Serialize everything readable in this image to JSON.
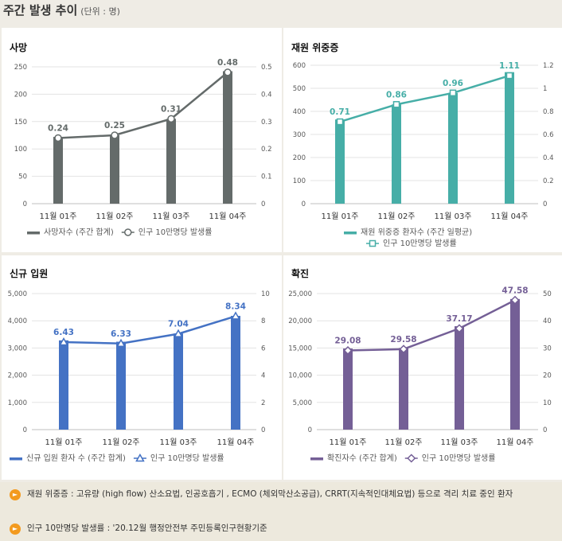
{
  "header": {
    "title": "주간 발생 추이",
    "unit": "(단위 : 명)"
  },
  "charts": [
    {
      "type": "bar",
      "title": "사망",
      "color": "#646b6a",
      "categories": [
        "11월 01주",
        "11월 02주",
        "11월 03주",
        "11월 04주"
      ],
      "bar_values": [
        122,
        125,
        155,
        242
      ],
      "line_values": [
        0.24,
        0.25,
        0.31,
        0.48
      ],
      "line_labels": [
        "0.24",
        "0.25",
        "0.31",
        "0.48"
      ],
      "ylim_left": [
        0,
        250
      ],
      "ylim_right": [
        0,
        0.5
      ],
      "left_ticks": [
        "0",
        "50",
        "100",
        "150",
        "200",
        "250"
      ],
      "right_ticks": [
        "0",
        "0.1",
        "0.2",
        "0.3",
        "0.4",
        "0.5"
      ],
      "legend_bar": "사망자수 (주간 합계)",
      "legend_line": "인구 10만명당 발생률",
      "marker": "circle"
    },
    {
      "type": "bar",
      "title": "재원 위중증",
      "color": "#46aea7",
      "categories": [
        "11월 01주",
        "11월 02주",
        "11월 03주",
        "11월 04주"
      ],
      "bar_values": [
        365,
        430,
        480,
        570
      ],
      "line_values": [
        0.71,
        0.86,
        0.96,
        1.11
      ],
      "line_labels": [
        "0.71",
        "0.86",
        "0.96",
        "1.11"
      ],
      "ylim_left": [
        0,
        600
      ],
      "ylim_right": [
        0,
        1.2
      ],
      "left_ticks": [
        "0",
        "100",
        "200",
        "300",
        "400",
        "500",
        "600"
      ],
      "right_ticks": [
        "0",
        "0.2",
        "0.4",
        "0.6",
        "0.8",
        "1",
        "1.2"
      ],
      "legend_bar": "재원 위중증 환자수 (주간 일평균)",
      "legend_line": "인구 10만명당 발생률",
      "marker": "square"
    },
    {
      "type": "bar",
      "title": "신규 입원",
      "color": "#4472c4",
      "categories": [
        "11월 01주",
        "11월 02주",
        "11월 03주",
        "11월 04주"
      ],
      "bar_values": [
        3280,
        3230,
        3530,
        4180
      ],
      "line_values": [
        6.43,
        6.33,
        7.04,
        8.34
      ],
      "line_labels": [
        "6.43",
        "6.33",
        "7.04",
        "8.34"
      ],
      "ylim_left": [
        0,
        5000
      ],
      "ylim_right": [
        0,
        10
      ],
      "left_ticks": [
        "0",
        "1,000",
        "2,000",
        "3,000",
        "4,000",
        "5,000"
      ],
      "right_ticks": [
        "0",
        "2",
        "4",
        "6",
        "8",
        "10"
      ],
      "legend_bar": "신규 입원 환자 수 (주간 합계)",
      "legend_line": "인구 10만명당 발생률",
      "marker": "triangle"
    },
    {
      "type": "bar",
      "title": "확진",
      "color": "#745f96",
      "categories": [
        "11월 01주",
        "11월 02주",
        "11월 03주",
        "11월 04주"
      ],
      "bar_values": [
        14900,
        15000,
        19000,
        24000
      ],
      "line_values": [
        29.08,
        29.58,
        37.17,
        47.58
      ],
      "line_labels": [
        "29.08",
        "29.58",
        "37.17",
        "47.58"
      ],
      "ylim_left": [
        0,
        25000
      ],
      "ylim_right": [
        0,
        50
      ],
      "left_ticks": [
        "0",
        "5,000",
        "10,000",
        "15,000",
        "20,000",
        "25,000"
      ],
      "right_ticks": [
        "0",
        "10",
        "20",
        "30",
        "40",
        "50"
      ],
      "legend_bar": "확진자수 (주간 합계)",
      "legend_line": "인구 10만명당 발생률",
      "marker": "diamond"
    }
  ],
  "notes": [
    "재원 위중증 : 고유량 (high flow) 산소요법, 인공호흡기 , ECMO (체외막산소공급), CRRT(지속적인대체요법) 등으로 격리 치료 중인 환자",
    "인구 10만명당 발생률 : '20.12월 행정안전부 주민등록인구현황기준"
  ],
  "note_icon": "speaker-icon"
}
